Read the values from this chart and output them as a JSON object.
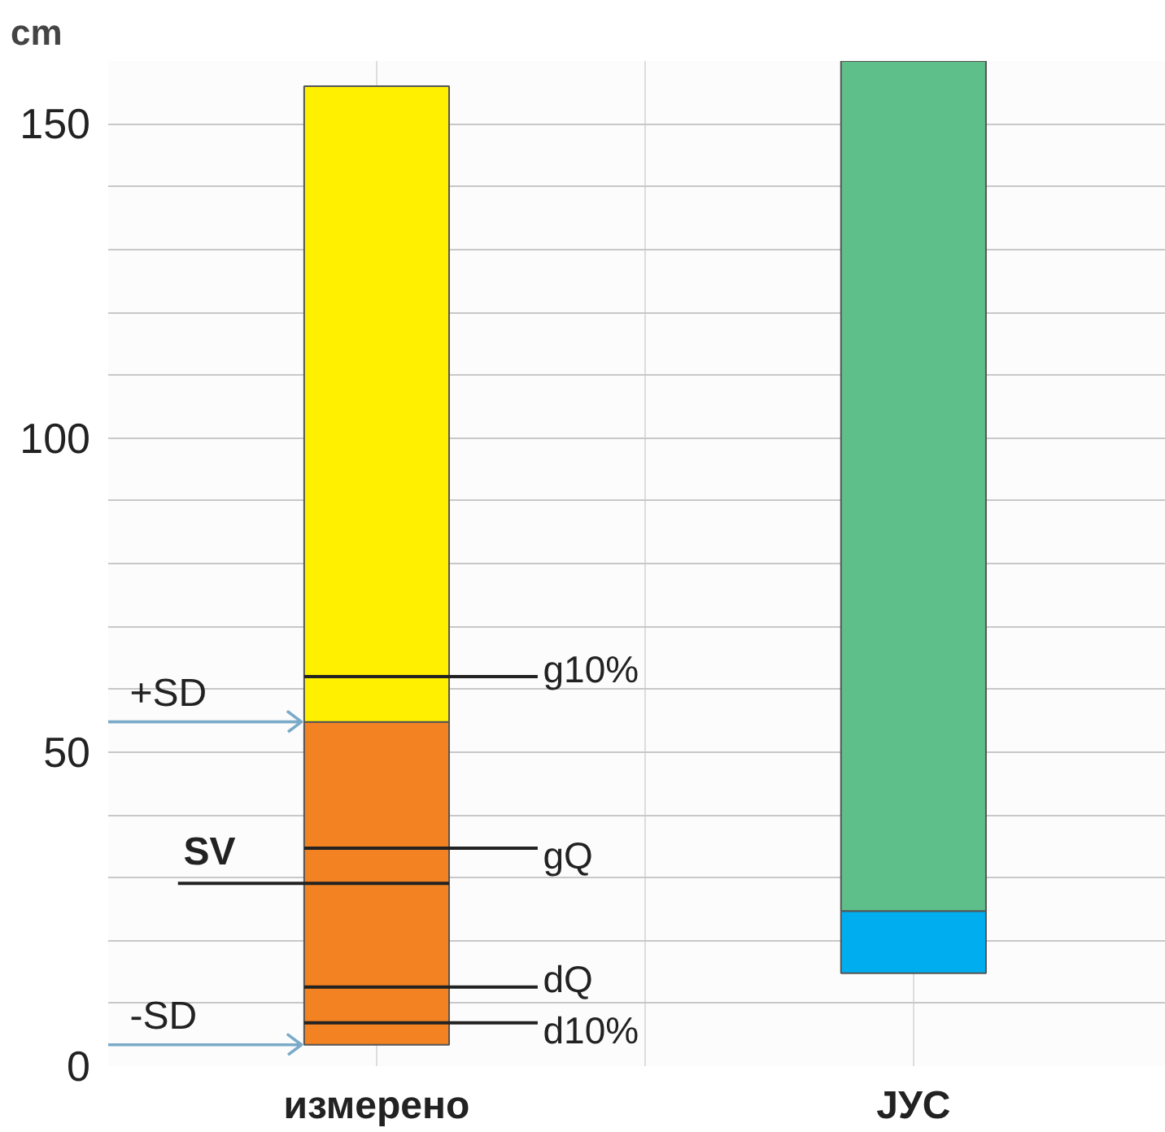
{
  "chart_data": {
    "type": "bar",
    "ylabel": "cm",
    "categories": [
      "измерено",
      "ЈУС"
    ],
    "series": [
      {
        "color": "#f28222",
        "values": [
          51.4,
          null
        ],
        "base": [
          3.4,
          null
        ]
      },
      {
        "color": "#fff000",
        "values": [
          101.2,
          null
        ],
        "base": [
          54.8,
          null
        ]
      },
      {
        "color": "#00aeef",
        "values": [
          null,
          9.9
        ],
        "base": [
          null,
          14.8
        ]
      },
      {
        "color": "#5fbf8a",
        "values": [
          null,
          135.3
        ],
        "base": [
          null,
          24.7
        ]
      }
    ],
    "ref_lines": [
      {
        "axis": "y",
        "value": 62,
        "label": "g10%"
      },
      {
        "axis": "y",
        "value": 34.7,
        "label": "gQ"
      },
      {
        "axis": "y",
        "value": 12.6,
        "label": "dQ"
      },
      {
        "axis": "y",
        "value": 6.9,
        "label": "d10%"
      },
      {
        "axis": "y",
        "value": 29.1,
        "label": "SV"
      },
      {
        "axis": "y",
        "value": 54.8,
        "label": "+SD",
        "color": "#7aaac8"
      },
      {
        "axis": "y",
        "value": 3.4,
        "label": "-SD",
        "color": "#7aaac8"
      }
    ],
    "ylim": [
      0,
      160
    ],
    "yticks": [
      0,
      50,
      100,
      150
    ],
    "grid": true
  }
}
